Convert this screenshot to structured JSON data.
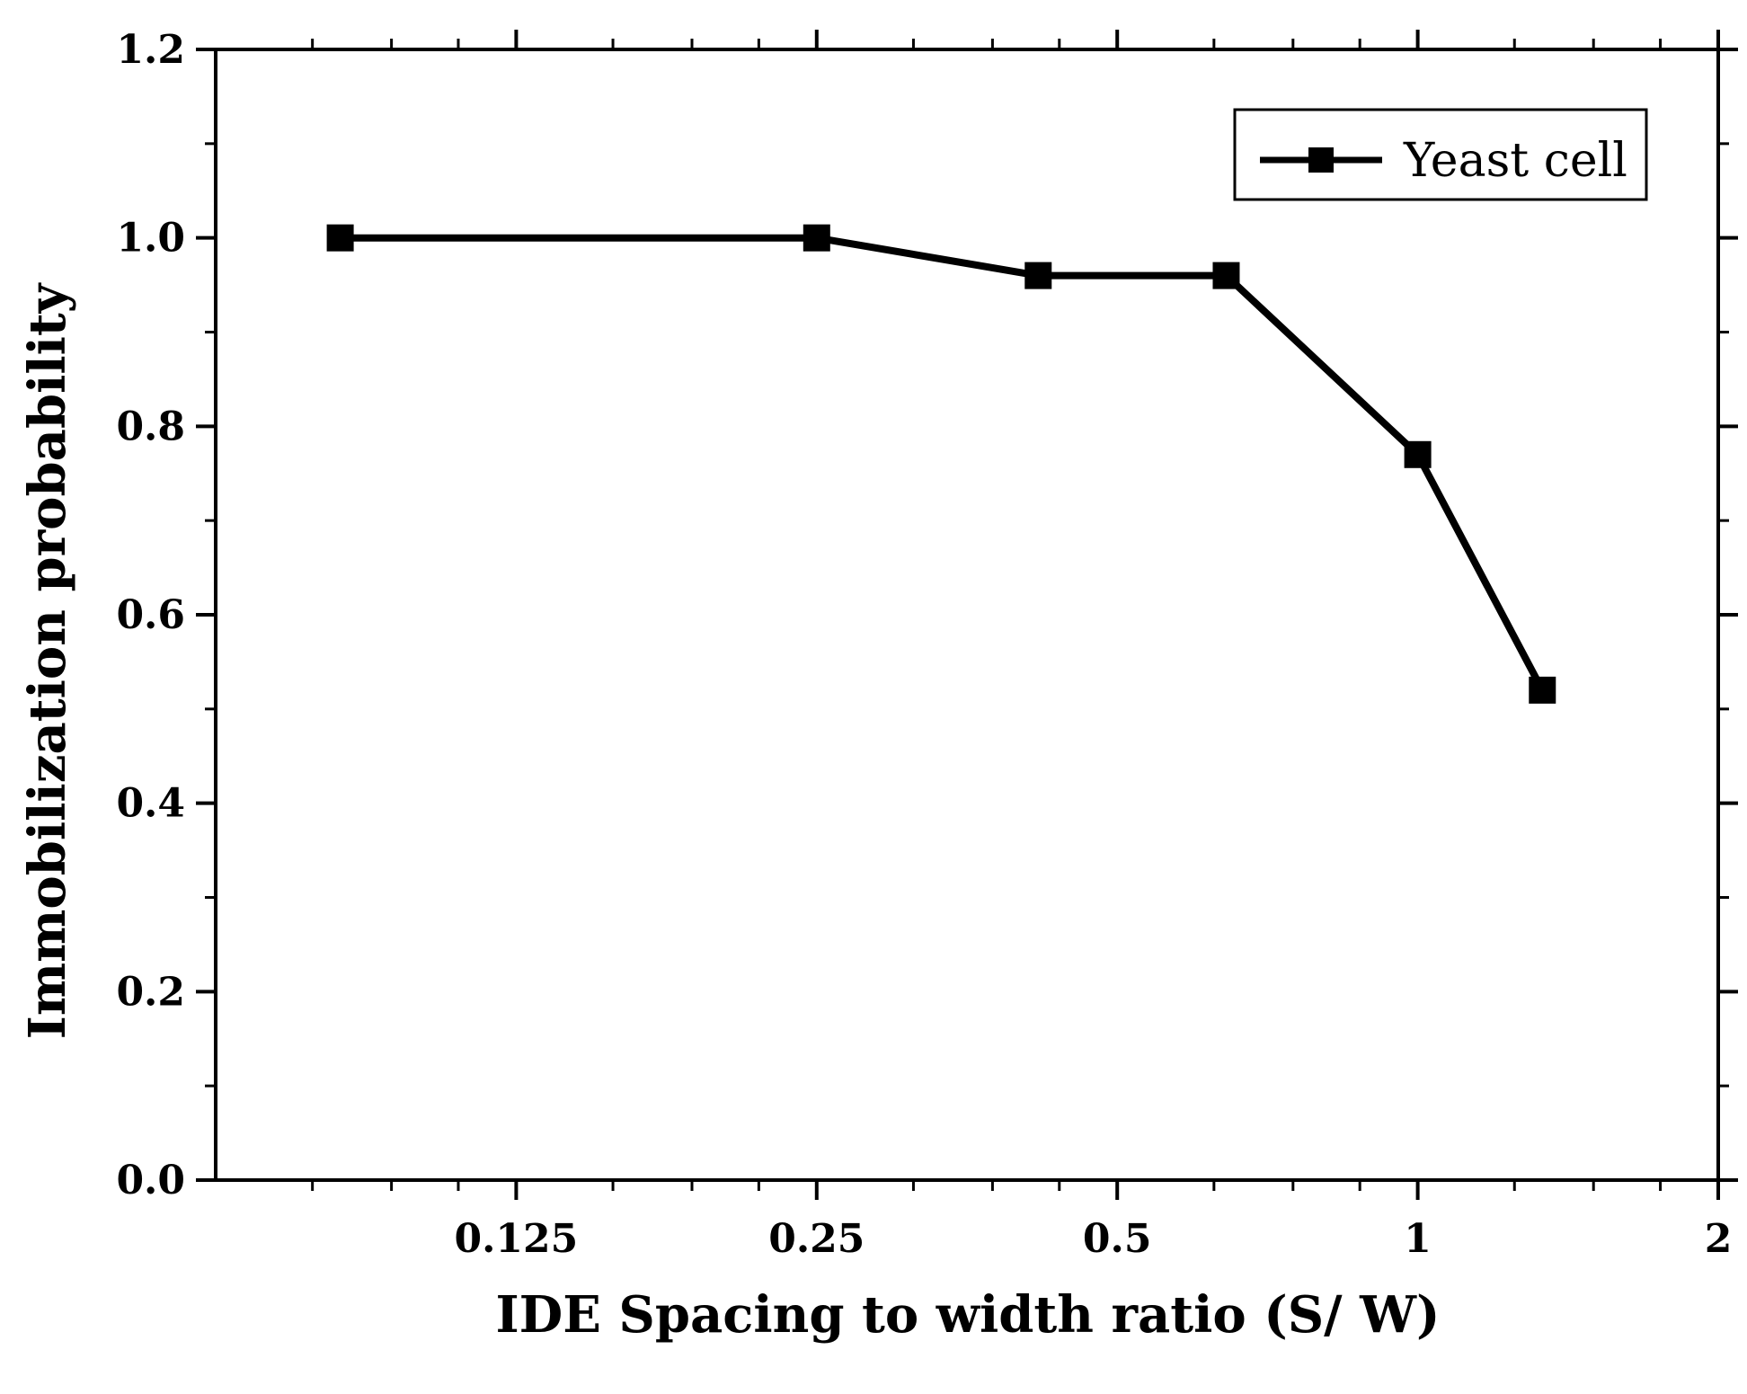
{
  "chart_data": {
    "type": "line",
    "title": "",
    "xlabel": "IDE Spacing to width ratio (S/ W)",
    "ylabel": "Immobilization probability",
    "x_scale": "log2",
    "xlim": [
      0.0625,
      2
    ],
    "ylim": [
      0,
      1.2
    ],
    "x_ticks": [
      {
        "value": 0.125,
        "label": "0.125"
      },
      {
        "value": 0.25,
        "label": "0.25"
      },
      {
        "value": 0.5,
        "label": "0.5"
      },
      {
        "value": 1,
        "label": "1"
      },
      {
        "value": 2,
        "label": "2"
      }
    ],
    "y_ticks": [
      {
        "value": 0,
        "label": "0.0"
      },
      {
        "value": 0.2,
        "label": "0.2"
      },
      {
        "value": 0.4,
        "label": "0.4"
      },
      {
        "value": 0.6,
        "label": "0.6"
      },
      {
        "value": 0.8,
        "label": "0.8"
      },
      {
        "value": 1.0,
        "label": "1.0"
      },
      {
        "value": 1.2,
        "label": "1.2"
      }
    ],
    "legend_position": "top-right",
    "grid": false,
    "series": [
      {
        "name": "Yeast cell",
        "color": "#000000",
        "marker": "square",
        "x": [
          0.0833,
          0.25,
          0.4167,
          0.6429,
          1.0,
          1.333
        ],
        "y": [
          1.0,
          1.0,
          0.96,
          0.96,
          0.77,
          0.52
        ]
      }
    ]
  }
}
